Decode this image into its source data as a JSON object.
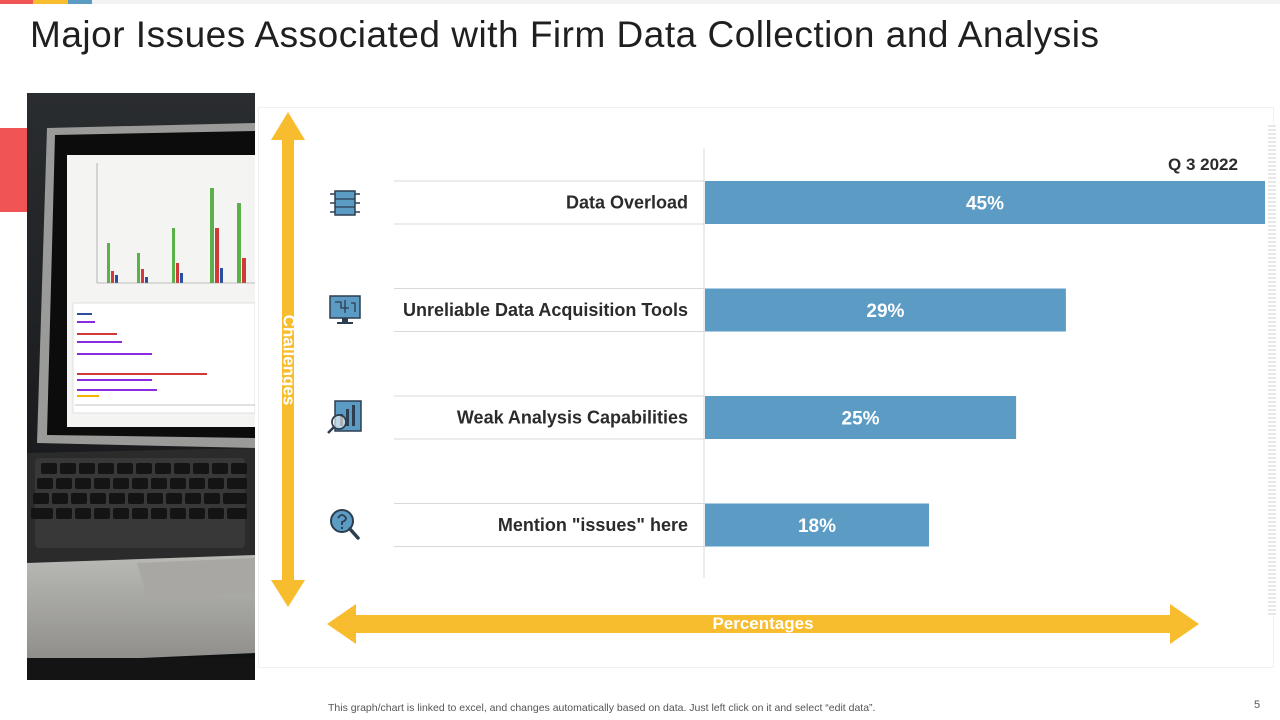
{
  "slide": {
    "title": "Major Issues Associated with Firm Data Collection and Analysis",
    "footer_note": "This graph/chart is linked to excel, and changes automatically based on data. Just left click on it and select “edit data”.",
    "page_number": "5"
  },
  "colors": {
    "accent_bar": "#5b9bc4",
    "arrow": "#f7bd2e",
    "red_tab": "#f05454",
    "top_red": "#f05454",
    "top_yellow": "#f7bd2e",
    "top_blue": "#5b9bc4"
  },
  "axis_labels": {
    "vertical": "Challenges",
    "horizontal": "Percentages"
  },
  "icons": [
    "chip-icon",
    "monitor-circuit-icon",
    "analysis-chart-icon",
    "magnifier-question-icon"
  ],
  "chart_data": {
    "type": "bar",
    "orientation": "horizontal",
    "series": [
      {
        "name": "Q 3 2022",
        "values": [
          45,
          29,
          25,
          18
        ]
      }
    ],
    "categories": [
      "Data Overload",
      "Unreliable Data Acquisition Tools",
      "Weak Analysis Capabilities",
      "Mention \"issues\" here"
    ],
    "value_labels": [
      "45%",
      "29%",
      "25%",
      "18%"
    ],
    "xlim": [
      0,
      45
    ],
    "legend": "top-right",
    "grid": false
  }
}
